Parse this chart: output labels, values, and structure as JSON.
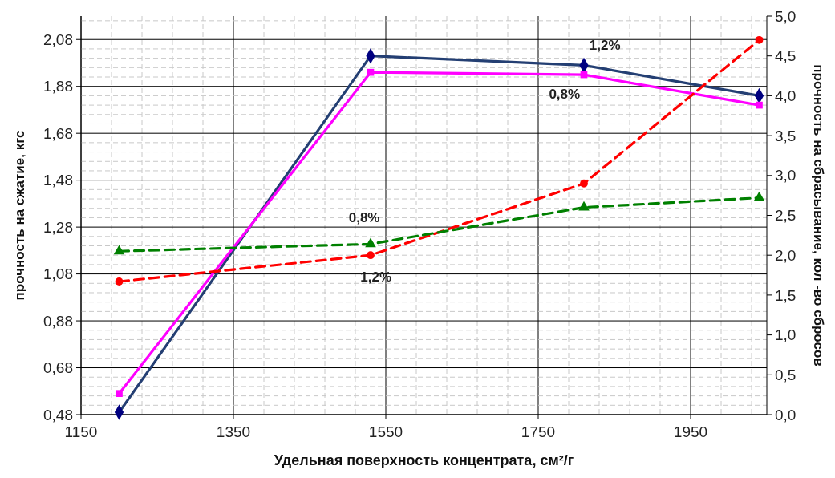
{
  "chart_data": {
    "type": "line",
    "xlabel": "Удельная поверхность концентрата, см²/г",
    "ylabel": "прочность на сжатие, кгс",
    "y2label": "прочность на сбрасывание, кол -во сбросов",
    "x": [
      1200,
      1530,
      1810,
      2040
    ],
    "series": [
      {
        "color": "#243f73",
        "values": [
          0.49,
          2.01,
          1.97,
          1.84
        ],
        "marker": "diamond",
        "line_style": "solid"
      },
      {
        "color": "#ff00ff",
        "values": [
          0.57,
          1.94,
          1.93,
          1.8
        ],
        "marker": "square",
        "line_style": "solid"
      },
      {
        "color": "#ff0000",
        "values": [
          1.67,
          2.0,
          2.9,
          4.7
        ],
        "marker": "circle",
        "line_style": "dashed",
        "axis": "y2"
      },
      {
        "color": "#008000",
        "values": [
          2.05,
          2.14,
          2.6,
          2.72
        ],
        "marker": "triangle",
        "line_style": "dashed",
        "axis": "y2"
      }
    ],
    "xlim": [
      1150,
      2050
    ],
    "xticks": [
      1150,
      1350,
      1550,
      1750,
      1950
    ],
    "ylim": [
      0.48,
      2.18
    ],
    "yticks": [
      {
        "value": 0.48,
        "label": "0,48"
      },
      {
        "value": 0.68,
        "label": "0,68"
      },
      {
        "value": 0.88,
        "label": "0,88"
      },
      {
        "value": 1.08,
        "label": "1,08"
      },
      {
        "value": 1.28,
        "label": "1,28"
      },
      {
        "value": 1.48,
        "label": "1,48"
      },
      {
        "value": 1.68,
        "label": "1,68"
      },
      {
        "value": 1.88,
        "label": "1,88"
      },
      {
        "value": 2.08,
        "label": "2,08"
      }
    ],
    "y2lim": [
      0,
      5
    ],
    "y2ticks": [
      {
        "value": 0,
        "label": "0,0"
      },
      {
        "value": 0.5,
        "label": "0,5"
      },
      {
        "value": 1,
        "label": "1,0"
      },
      {
        "value": 1.5,
        "label": "1,5"
      },
      {
        "value": 2,
        "label": "2,0"
      },
      {
        "value": 2.5,
        "label": "2,5"
      },
      {
        "value": 3,
        "label": "3,0"
      },
      {
        "value": 3.5,
        "label": "3,5"
      },
      {
        "value": 4,
        "label": "4,0"
      },
      {
        "value": 4.5,
        "label": "4,5"
      },
      {
        "value": 5,
        "label": "5,0"
      }
    ],
    "annotations": [
      "1,2%",
      "0,8%",
      "0,8%",
      "1,2%"
    ],
    "grid": true
  }
}
